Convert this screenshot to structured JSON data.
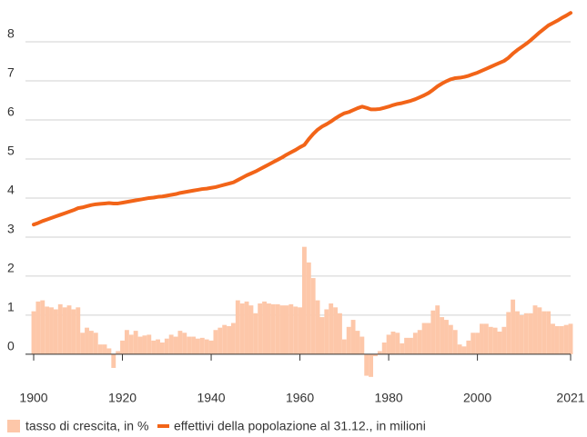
{
  "chart_data": {
    "type": "bar",
    "x": [
      1900,
      1901,
      1902,
      1903,
      1904,
      1905,
      1906,
      1907,
      1908,
      1909,
      1910,
      1911,
      1912,
      1913,
      1914,
      1915,
      1916,
      1917,
      1918,
      1919,
      1920,
      1921,
      1922,
      1923,
      1924,
      1925,
      1926,
      1927,
      1928,
      1929,
      1930,
      1931,
      1932,
      1933,
      1934,
      1935,
      1936,
      1937,
      1938,
      1939,
      1940,
      1941,
      1942,
      1943,
      1944,
      1945,
      1946,
      1947,
      1948,
      1949,
      1950,
      1951,
      1952,
      1953,
      1954,
      1955,
      1956,
      1957,
      1958,
      1959,
      1960,
      1961,
      1962,
      1963,
      1964,
      1965,
      1966,
      1967,
      1968,
      1969,
      1970,
      1971,
      1972,
      1973,
      1974,
      1975,
      1976,
      1977,
      1978,
      1979,
      1980,
      1981,
      1982,
      1983,
      1984,
      1985,
      1986,
      1987,
      1988,
      1989,
      1990,
      1991,
      1992,
      1993,
      1994,
      1995,
      1996,
      1997,
      1998,
      1999,
      2000,
      2001,
      2002,
      2003,
      2004,
      2005,
      2006,
      2007,
      2008,
      2009,
      2010,
      2011,
      2012,
      2013,
      2014,
      2015,
      2016,
      2017,
      2018,
      2019,
      2020,
      2021
    ],
    "series": [
      {
        "name": "tasso di crescita, in %",
        "type": "bar",
        "color": "#fdc7a9",
        "values": [
          1.1,
          1.35,
          1.38,
          1.22,
          1.2,
          1.15,
          1.28,
          1.2,
          1.25,
          1.15,
          1.2,
          0.55,
          0.68,
          0.6,
          0.55,
          0.25,
          0.25,
          0.15,
          -0.35,
          0.08,
          0.35,
          0.62,
          0.5,
          0.6,
          0.45,
          0.48,
          0.5,
          0.35,
          0.38,
          0.3,
          0.4,
          0.5,
          0.45,
          0.6,
          0.55,
          0.45,
          0.45,
          0.4,
          0.42,
          0.38,
          0.35,
          0.62,
          0.68,
          0.75,
          0.72,
          0.8,
          1.38,
          1.3,
          1.35,
          1.25,
          1.05,
          1.3,
          1.35,
          1.3,
          1.28,
          1.28,
          1.25,
          1.25,
          1.28,
          1.22,
          1.2,
          2.75,
          2.35,
          1.95,
          1.38,
          0.95,
          1.15,
          1.3,
          1.2,
          1.05,
          0.38,
          0.7,
          0.88,
          0.6,
          0.45,
          -0.55,
          -0.58,
          -0.05,
          0.08,
          0.3,
          0.5,
          0.58,
          0.55,
          0.28,
          0.42,
          0.42,
          0.55,
          0.62,
          0.8,
          0.8,
          1.12,
          1.25,
          0.95,
          0.88,
          0.75,
          0.62,
          0.25,
          0.2,
          0.35,
          0.55,
          0.55,
          0.78,
          0.78,
          0.7,
          0.68,
          0.58,
          0.7,
          1.08,
          1.4,
          1.1,
          1.0,
          1.05,
          1.05,
          1.25,
          1.2,
          1.1,
          1.1,
          0.78,
          0.72,
          0.72,
          0.75,
          0.78
        ]
      },
      {
        "name": "effettivi della popolazione al 31.12., in milioni",
        "type": "line",
        "color": "#f26418",
        "values": [
          3.32,
          3.36,
          3.41,
          3.45,
          3.49,
          3.53,
          3.57,
          3.61,
          3.65,
          3.69,
          3.74,
          3.76,
          3.79,
          3.82,
          3.84,
          3.85,
          3.86,
          3.87,
          3.86,
          3.86,
          3.88,
          3.9,
          3.92,
          3.94,
          3.96,
          3.98,
          4.0,
          4.01,
          4.03,
          4.04,
          4.06,
          4.08,
          4.1,
          4.13,
          4.15,
          4.17,
          4.19,
          4.21,
          4.23,
          4.24,
          4.26,
          4.28,
          4.31,
          4.34,
          4.37,
          4.4,
          4.46,
          4.52,
          4.58,
          4.63,
          4.68,
          4.74,
          4.8,
          4.86,
          4.92,
          4.98,
          5.04,
          5.11,
          5.17,
          5.23,
          5.3,
          5.36,
          5.51,
          5.64,
          5.75,
          5.83,
          5.89,
          5.96,
          6.04,
          6.11,
          6.17,
          6.2,
          6.25,
          6.3,
          6.34,
          6.31,
          6.27,
          6.27,
          6.28,
          6.31,
          6.34,
          6.38,
          6.41,
          6.43,
          6.46,
          6.49,
          6.53,
          6.58,
          6.63,
          6.69,
          6.77,
          6.86,
          6.93,
          6.99,
          7.04,
          7.07,
          7.08,
          7.1,
          7.13,
          7.17,
          7.21,
          7.26,
          7.31,
          7.36,
          7.41,
          7.46,
          7.51,
          7.59,
          7.7,
          7.79,
          7.87,
          7.95,
          8.04,
          8.14,
          8.24,
          8.33,
          8.42,
          8.48,
          8.54,
          8.61,
          8.67,
          8.74
        ]
      }
    ],
    "xlim": [
      1900,
      2021
    ],
    "xticks": [
      1900,
      1920,
      1940,
      1960,
      1980,
      2000,
      2021
    ],
    "ylim": [
      -0.7,
      9
    ],
    "yticks": [
      0,
      1,
      2,
      3,
      4,
      5,
      6,
      7,
      8
    ],
    "grid": true
  }
}
